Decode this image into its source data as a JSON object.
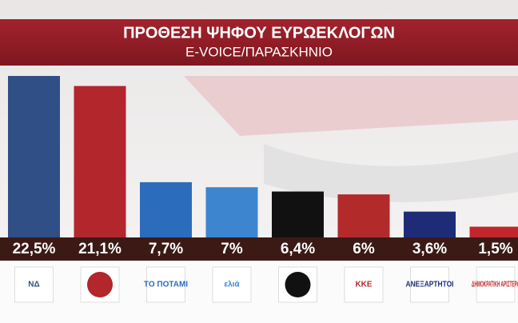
{
  "chart_data": {
    "type": "bar",
    "title": "ΠΡΟΘΕΣΗ ΨΗΦΟΥ ΕΥΡΩΕΚΛΟΓΩΝ",
    "subtitle": "E-VOICE/ΠΑΡΑΣΚΗΝΙΟ",
    "categories": [
      "ΝΔ",
      null,
      "ΤΟ ΠΟΤΑΜΙ",
      "ελιά",
      null,
      "ΚΚΕ",
      "ΑΝΕΞΑΡΤΗΤΟΙ",
      "ΔΗΜΟΚΡΑΤΙΚΗ ΑΡΙΣΤΕΡΑ"
    ],
    "values": [
      22.5,
      21.1,
      7.7,
      7,
      6.4,
      6,
      3.6,
      1.5
    ],
    "value_labels": [
      "22,5%",
      "21,1%",
      "7,7%",
      "7%",
      "6,4%",
      "6%",
      "3,6%",
      "1,5%"
    ],
    "colors": [
      "#2f4f86",
      "#b3262c",
      "#2c6cbd",
      "#3d86cf",
      "#111111",
      "#b32a2b",
      "#1e2c78",
      "#c0262c"
    ]
  }
}
